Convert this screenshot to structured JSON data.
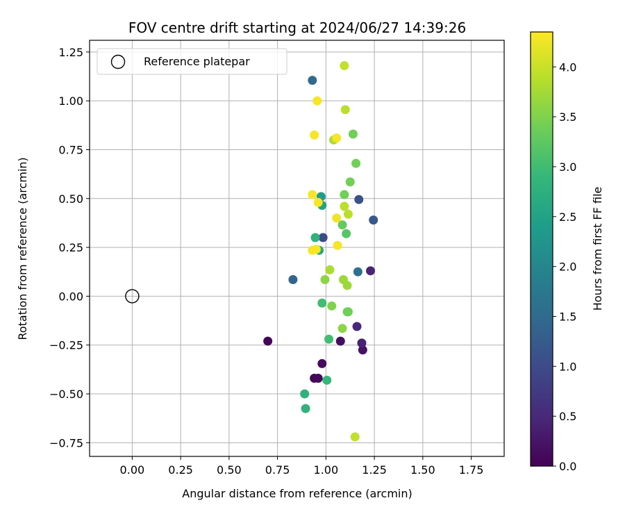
{
  "chart_data": {
    "type": "scatter",
    "title": "FOV centre drift starting at 2024/06/27 14:39:26",
    "xlabel": "Angular distance from reference (arcmin)",
    "ylabel": "Rotation from reference (arcmin)",
    "xlim": [
      -0.22,
      1.92
    ],
    "ylim": [
      -0.82,
      1.31
    ],
    "x_ticks": [
      "0.00",
      "0.25",
      "0.50",
      "0.75",
      "1.00",
      "1.25",
      "1.50",
      "1.75"
    ],
    "x_tick_values": [
      0,
      0.25,
      0.5,
      0.75,
      1.0,
      1.25,
      1.5,
      1.75
    ],
    "y_ticks": [
      "1.25",
      "1.00",
      "0.75",
      "0.50",
      "0.25",
      "0.00",
      "−0.25",
      "−0.50",
      "−0.75"
    ],
    "y_tick_values": [
      1.25,
      1.0,
      0.75,
      0.5,
      0.25,
      0.0,
      -0.25,
      -0.5,
      -0.75
    ],
    "grid": true,
    "legend": {
      "label": "Reference platepar",
      "position": "top-left"
    },
    "reference_point": {
      "x": 0.0,
      "y": 0.0
    },
    "colorbar": {
      "label": "Hours from first FF file",
      "colormap": "viridis",
      "range": [
        0,
        4.35
      ],
      "ticks": [
        "0.0",
        "0.5",
        "1.0",
        "1.5",
        "2.0",
        "2.5",
        "3.0",
        "3.5",
        "4.0"
      ],
      "tick_values": [
        0,
        0.5,
        1.0,
        1.5,
        2.0,
        2.5,
        3.0,
        3.5,
        4.0
      ],
      "colors": [
        "#440154",
        "#482878",
        "#3e4989",
        "#31688e",
        "#26828e",
        "#1f9e89",
        "#35b779",
        "#6ece58",
        "#b5de2b",
        "#fde725"
      ]
    },
    "points": [
      {
        "x": 0.7,
        "y": -0.23,
        "h": 0.05
      },
      {
        "x": 0.94,
        "y": -0.42,
        "h": 0.08
      },
      {
        "x": 0.96,
        "y": -0.42,
        "h": 0.1
      },
      {
        "x": 0.98,
        "y": -0.345,
        "h": 0.12
      },
      {
        "x": 1.075,
        "y": -0.23,
        "h": 0.15
      },
      {
        "x": 1.19,
        "y": -0.275,
        "h": 0.2
      },
      {
        "x": 1.185,
        "y": -0.24,
        "h": 0.4
      },
      {
        "x": 1.16,
        "y": -0.155,
        "h": 0.5
      },
      {
        "x": 1.23,
        "y": 0.13,
        "h": 0.45
      },
      {
        "x": 0.985,
        "y": 0.3,
        "h": 1.0
      },
      {
        "x": 1.17,
        "y": 0.495,
        "h": 1.1
      },
      {
        "x": 1.245,
        "y": 0.39,
        "h": 1.2
      },
      {
        "x": 0.83,
        "y": 0.085,
        "h": 1.4
      },
      {
        "x": 1.165,
        "y": 0.125,
        "h": 1.6
      },
      {
        "x": 0.93,
        "y": 1.105,
        "h": 1.5
      },
      {
        "x": 0.975,
        "y": 0.51,
        "h": 2.4
      },
      {
        "x": 0.98,
        "y": 0.465,
        "h": 2.5
      },
      {
        "x": 0.965,
        "y": 0.235,
        "h": 2.6
      },
      {
        "x": 0.945,
        "y": 0.3,
        "h": 2.8
      },
      {
        "x": 0.89,
        "y": -0.5,
        "h": 2.8
      },
      {
        "x": 0.895,
        "y": -0.575,
        "h": 2.8
      },
      {
        "x": 1.005,
        "y": -0.43,
        "h": 2.9
      },
      {
        "x": 1.015,
        "y": -0.22,
        "h": 3.0
      },
      {
        "x": 0.98,
        "y": -0.035,
        "h": 3.0
      },
      {
        "x": 1.105,
        "y": 0.32,
        "h": 3.2
      },
      {
        "x": 1.085,
        "y": 0.365,
        "h": 3.3
      },
      {
        "x": 1.11,
        "y": -0.08,
        "h": 3.4
      },
      {
        "x": 1.115,
        "y": -0.08,
        "h": 3.4
      },
      {
        "x": 1.095,
        "y": 0.52,
        "h": 3.4
      },
      {
        "x": 1.125,
        "y": 0.585,
        "h": 3.4
      },
      {
        "x": 1.155,
        "y": 0.68,
        "h": 3.4
      },
      {
        "x": 1.14,
        "y": 0.83,
        "h": 3.4
      },
      {
        "x": 1.03,
        "y": -0.05,
        "h": 3.5
      },
      {
        "x": 0.995,
        "y": 0.085,
        "h": 3.6
      },
      {
        "x": 1.085,
        "y": -0.165,
        "h": 3.6
      },
      {
        "x": 1.09,
        "y": 0.085,
        "h": 3.7
      },
      {
        "x": 1.11,
        "y": 0.055,
        "h": 3.7
      },
      {
        "x": 1.02,
        "y": 0.135,
        "h": 3.8
      },
      {
        "x": 1.04,
        "y": 0.8,
        "h": 3.8
      },
      {
        "x": 1.095,
        "y": 0.46,
        "h": 3.9
      },
      {
        "x": 1.115,
        "y": 0.42,
        "h": 3.9
      },
      {
        "x": 1.1,
        "y": 0.955,
        "h": 3.9
      },
      {
        "x": 1.095,
        "y": 1.18,
        "h": 3.95
      },
      {
        "x": 1.15,
        "y": -0.72,
        "h": 3.95
      },
      {
        "x": 1.055,
        "y": 0.4,
        "h": 4.25
      },
      {
        "x": 1.06,
        "y": 0.26,
        "h": 4.3
      },
      {
        "x": 0.93,
        "y": 0.235,
        "h": 4.3
      },
      {
        "x": 0.95,
        "y": 0.24,
        "h": 4.3
      },
      {
        "x": 0.93,
        "y": 0.52,
        "h": 4.3
      },
      {
        "x": 0.96,
        "y": 0.48,
        "h": 4.3
      },
      {
        "x": 0.94,
        "y": 0.825,
        "h": 4.3
      },
      {
        "x": 1.055,
        "y": 0.81,
        "h": 4.3
      },
      {
        "x": 0.955,
        "y": 1.0,
        "h": 4.3
      }
    ]
  }
}
